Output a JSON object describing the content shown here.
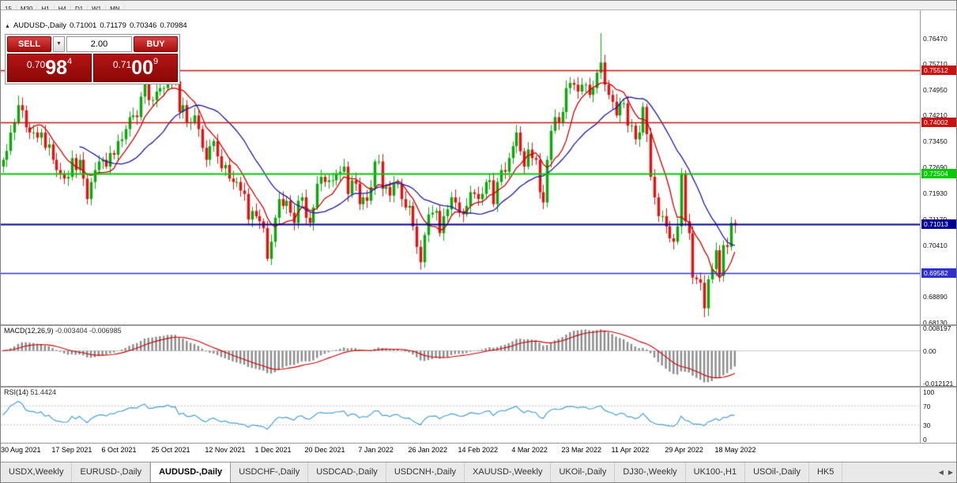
{
  "top_toolbar": {
    "timeframes": [
      "15",
      "M30",
      "H1",
      "H4",
      "D1",
      "W1",
      "MN"
    ]
  },
  "symbol_info": {
    "icon": "▲",
    "label": "AUDUSD-,Daily",
    "open": "0.71001",
    "high": "0.71179",
    "low": "0.70346",
    "close": "0.70984"
  },
  "trade_panel": {
    "sell_label": "SELL",
    "buy_label": "BUY",
    "volume": "2.00",
    "spinner_icon": "▼",
    "sell_price": {
      "big": "0.70",
      "digits": "98",
      "sup": "4"
    },
    "buy_price": {
      "big": "0.71",
      "digits": "00",
      "sup": "9"
    }
  },
  "macd": {
    "title": "MACD(12,26,9)",
    "values": "-0.003404 -0.006985",
    "scale": [
      {
        "label": "0.008197",
        "value": 0.008197
      },
      {
        "label": "0.00",
        "value": 0
      },
      {
        "label": "-0.012121",
        "value": -0.012121
      }
    ]
  },
  "rsi": {
    "title": "RSI(14)",
    "value": "51.4424",
    "levels": [
      70,
      30
    ],
    "scale": [
      {
        "label": "100",
        "value": 100
      },
      {
        "label": "70",
        "value": 70
      },
      {
        "label": "30",
        "value": 30
      },
      {
        "label": "0",
        "value": 0
      }
    ]
  },
  "tabs": {
    "active_index": 2,
    "scroll_left": "◀",
    "scroll_right": "▶",
    "items": [
      "USDX,Weekly",
      "EURUSD-,Daily",
      "AUDUSD-,Daily",
      "USDCHF-,Daily",
      "USDCAD-,Daily",
      "USDCNH-,Daily",
      "XAUUSD-,Weekly",
      "UKOil-,Daily",
      "DJ30-,Weekly",
      "UK100-,H1",
      "USOil-,Daily",
      "HK5"
    ]
  },
  "chart_data": {
    "type": "candlestick",
    "symbol": "AUDUSD-",
    "timeframe": "Daily",
    "ylim": [
      0.6808,
      0.7728
    ],
    "y_ticks": [
      "0.76470",
      "0.75710",
      "0.74950",
      "0.74210",
      "0.73450",
      "0.72690",
      "0.71930",
      "0.71170",
      "0.70410",
      "0.69650",
      "0.68890",
      "0.68130"
    ],
    "x_axis": {
      "labels": [
        "30 Aug 2021",
        "17 Sep 2021",
        "6 Oct 2021",
        "25 Oct 2021",
        "12 Nov 2021",
        "1 Dec 2021",
        "20 Dec 2021",
        "7 Jan 2022",
        "26 Jan 2022",
        "14 Feb 2022",
        "4 Mar 2022",
        "23 Mar 2022",
        "11 Apr 2022",
        "29 Apr 2022",
        "18 May 2022"
      ],
      "bar_indices": [
        0,
        14,
        27,
        40,
        54,
        67,
        80,
        94,
        107,
        120,
        134,
        147,
        160,
        174,
        187
      ]
    },
    "closes": [
      0.729,
      0.7316,
      0.737,
      0.74,
      0.745,
      0.7435,
      0.7385,
      0.737,
      0.737,
      0.7355,
      0.737,
      0.7325,
      0.7335,
      0.729,
      0.726,
      0.725,
      0.7235,
      0.724,
      0.7295,
      0.726,
      0.729,
      0.7235,
      0.7175,
      0.7225,
      0.726,
      0.7285,
      0.729,
      0.727,
      0.731,
      0.7305,
      0.7345,
      0.735,
      0.738,
      0.7415,
      0.742,
      0.7415,
      0.7475,
      0.7515,
      0.7465,
      0.7465,
      0.749,
      0.75,
      0.75,
      0.754,
      0.752,
      0.752,
      0.743,
      0.745,
      0.74,
      0.74,
      0.742,
      0.738,
      0.7325,
      0.729,
      0.733,
      0.7345,
      0.73,
      0.7265,
      0.7275,
      0.7235,
      0.7225,
      0.7225,
      0.72,
      0.719,
      0.7115,
      0.714,
      0.7125,
      0.711,
      0.709,
      0.7,
      0.705,
      0.712,
      0.7175,
      0.7155,
      0.717,
      0.7135,
      0.7105,
      0.717,
      0.718,
      0.712,
      0.7105,
      0.715,
      0.722,
      0.724,
      0.7225,
      0.723,
      0.723,
      0.725,
      0.7255,
      0.727,
      0.719,
      0.723,
      0.722,
      0.716,
      0.718,
      0.717,
      0.721,
      0.7285,
      0.7285,
      0.7205,
      0.721,
      0.7185,
      0.722,
      0.722,
      0.7175,
      0.715,
      0.7155,
      0.7095,
      0.7035,
      0.699,
      0.707,
      0.713,
      0.7135,
      0.714,
      0.7075,
      0.7125,
      0.7145,
      0.718,
      0.7165,
      0.7135,
      0.713,
      0.7155,
      0.7195,
      0.719,
      0.7175,
      0.719,
      0.7225,
      0.723,
      0.716,
      0.7225,
      0.726,
      0.7255,
      0.7295,
      0.733,
      0.737,
      0.7315,
      0.727,
      0.732,
      0.7295,
      0.729,
      0.7195,
      0.7165,
      0.729,
      0.7375,
      0.7415,
      0.74,
      0.743,
      0.75,
      0.7515,
      0.751,
      0.749,
      0.751,
      0.751,
      0.748,
      0.75,
      0.7545,
      0.7575,
      0.751,
      0.748,
      0.746,
      0.742,
      0.7455,
      0.7455,
      0.739,
      0.739,
      0.735,
      0.737,
      0.7445,
      0.7365,
      0.724,
      0.718,
      0.7125,
      0.7125,
      0.7095,
      0.706,
      0.705,
      0.7095,
      0.725,
      0.711,
      0.7075,
      0.6945,
      0.694,
      0.693,
      0.6855,
      0.694,
      0.697,
      0.7025,
      0.695,
      0.704,
      0.7035,
      0.7105,
      0.7098
    ],
    "wick_overrides": {
      "4": {
        "high": 0.7478
      },
      "43": {
        "high": 0.7555
      },
      "69": {
        "low": 0.6993
      },
      "109": {
        "low": 0.6968
      },
      "156": {
        "high": 0.7661
      },
      "167": {
        "high": 0.7458
      },
      "177": {
        "high": 0.7266
      },
      "183": {
        "low": 0.6829
      }
    },
    "overlays": [
      {
        "name": "ma-fast",
        "type": "sma",
        "period": 8,
        "color": "#cc0000"
      },
      {
        "name": "ma-slow",
        "type": "sma",
        "period": 21,
        "color": "#1a1aa6"
      }
    ],
    "hlines": [
      {
        "label": "0.75512",
        "price": 0.75512,
        "color": "#cc1111",
        "width": 1.4
      },
      {
        "label": "0.74002",
        "price": 0.74002,
        "color": "#cc1111",
        "width": 1.4
      },
      {
        "label": "0.72504",
        "price": 0.72504,
        "color": "#00cc00",
        "width": 2
      },
      {
        "label": "0.71013",
        "price": 0.71013,
        "color": "#000096",
        "width": 2
      },
      {
        "label": "0.69582",
        "price": 0.69582,
        "color": "#3030cc",
        "width": 1.6
      }
    ],
    "colors": {
      "up": "#0da60d",
      "down": "#e01414",
      "macd_histogram": "#8c8c8c",
      "macd_signal": "#cc0000",
      "rsi_line": "#4aa0d8"
    },
    "indicators": [
      {
        "name": "MACD",
        "params": [
          12,
          26,
          9
        ]
      },
      {
        "name": "RSI",
        "params": [
          14
        ]
      }
    ]
  }
}
